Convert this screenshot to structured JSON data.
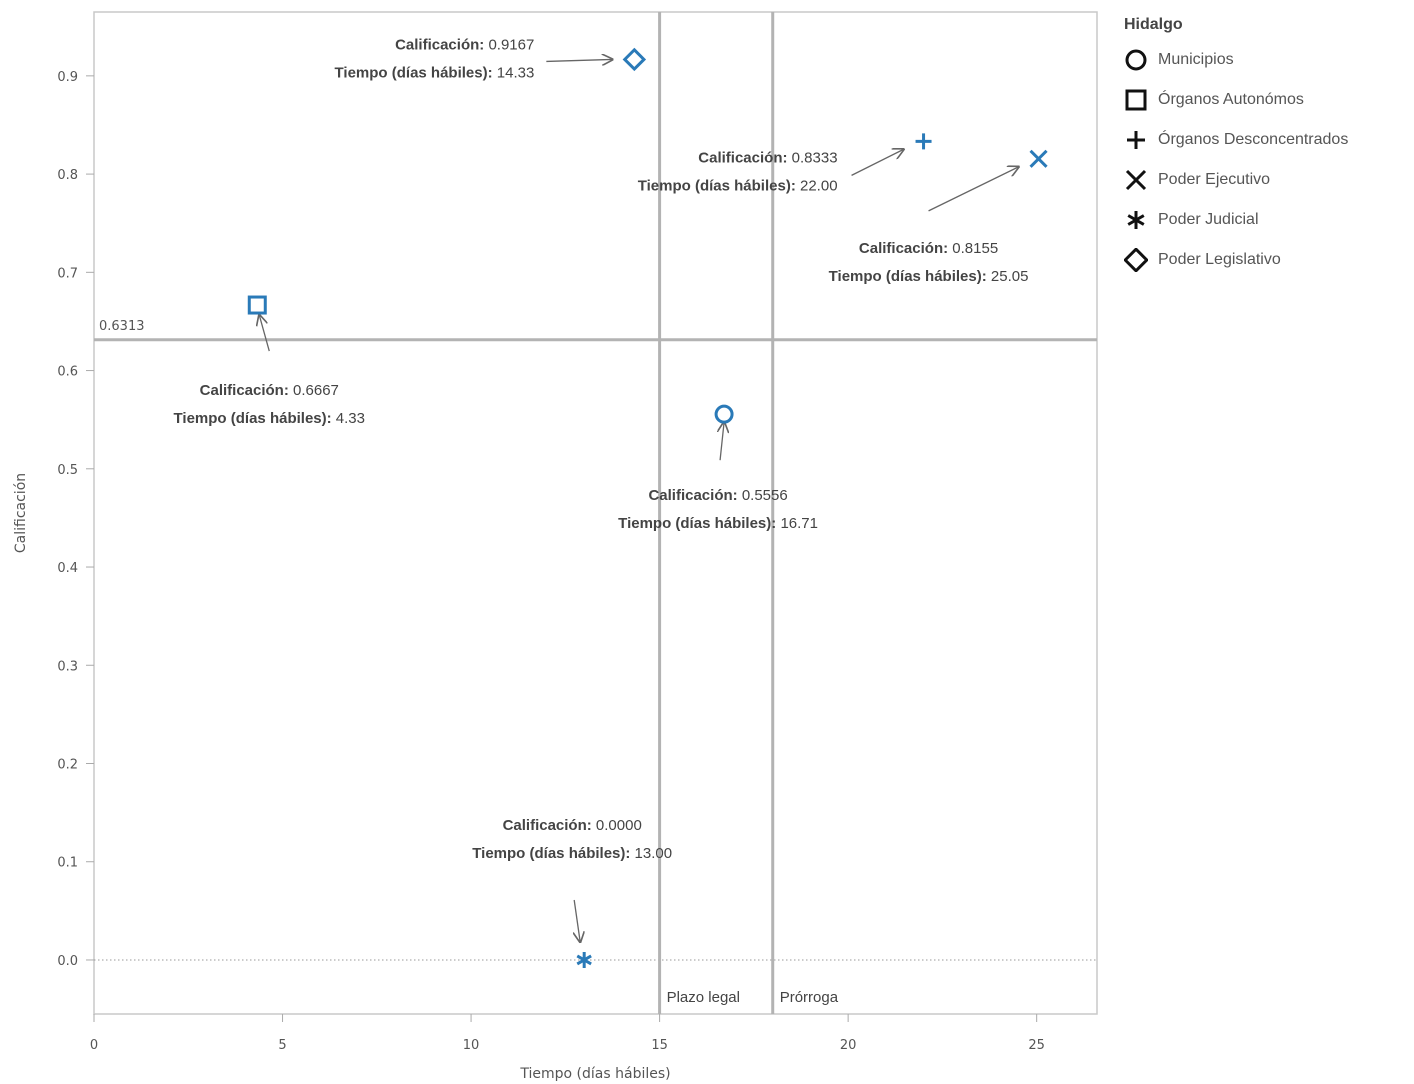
{
  "chart_data": {
    "type": "scatter",
    "xlabel": "Tiempo (días hábiles)",
    "ylabel": "Calificación",
    "xlim": [
      0,
      26.6
    ],
    "ylim": [
      -0.055,
      0.965
    ],
    "xticks": [
      0,
      5,
      10,
      15,
      20,
      25
    ],
    "xtick_labels": [
      "0",
      "5",
      "10",
      "15",
      "20",
      "25"
    ],
    "yticks": [
      0.0,
      0.1,
      0.2,
      0.3,
      0.4,
      0.5,
      0.6,
      0.7,
      0.8,
      0.9
    ],
    "ytick_labels": [
      "0.0",
      "0.1",
      "0.2",
      "0.3",
      "0.4",
      "0.5",
      "0.6",
      "0.7",
      "0.8",
      "0.9"
    ],
    "grid": false,
    "point_color": "#2a7ab8",
    "reference_lines": {
      "horizontal": {
        "y": 0.6313,
        "label": "0.6313"
      },
      "vertical": [
        {
          "x": 15,
          "label": "Plazo legal"
        },
        {
          "x": 18,
          "label": "Prórroga"
        }
      ],
      "zero_line": {
        "y": 0
      }
    },
    "legend": {
      "title": "Hidalgo",
      "placement": "right",
      "items": [
        {
          "name": "Municipios",
          "marker": "circle"
        },
        {
          "name": "Órganos Autonómos",
          "marker": "square"
        },
        {
          "name": "Órganos Desconcentrados",
          "marker": "plus"
        },
        {
          "name": "Poder Ejecutivo",
          "marker": "x"
        },
        {
          "name": "Poder Judicial",
          "marker": "asterisk"
        },
        {
          "name": "Poder Legislativo",
          "marker": "diamond"
        }
      ]
    },
    "points": [
      {
        "series": "Municipios",
        "marker": "circle",
        "x": 16.71,
        "y": 0.5556,
        "label_cal": "Calificación:",
        "label_cal_value": "0.5556",
        "label_time": "Tiempo (días hábiles):",
        "label_time_value": "16.71"
      },
      {
        "series": "Órganos Autonómos",
        "marker": "square",
        "x": 4.33,
        "y": 0.6667,
        "label_cal": "Calificación:",
        "label_cal_value": "0.6667",
        "label_time": "Tiempo (días hábiles):",
        "label_time_value": "4.33"
      },
      {
        "series": "Órganos Desconcentrados",
        "marker": "plus",
        "x": 22.0,
        "y": 0.8333,
        "label_cal": "Calificación:",
        "label_cal_value": "0.8333",
        "label_time": "Tiempo (días hábiles):",
        "label_time_value": "22.00"
      },
      {
        "series": "Poder Ejecutivo",
        "marker": "x",
        "x": 25.05,
        "y": 0.8155,
        "label_cal": "Calificación:",
        "label_cal_value": "0.8155",
        "label_time": "Tiempo (días hábiles):",
        "label_time_value": "25.05"
      },
      {
        "series": "Poder Judicial",
        "marker": "asterisk",
        "x": 13.0,
        "y": 0.0,
        "label_cal": "Calificación:",
        "label_cal_value": "0.0000",
        "label_time": "Tiempo (días hábiles):",
        "label_time_value": "13.00"
      },
      {
        "series": "Poder Legislativo",
        "marker": "diamond",
        "x": 14.33,
        "y": 0.9167,
        "label_cal": "Calificación:",
        "label_cal_value": "0.9167",
        "label_time": "Tiempo (días hábiles):",
        "label_time_value": "14.33"
      }
    ]
  }
}
